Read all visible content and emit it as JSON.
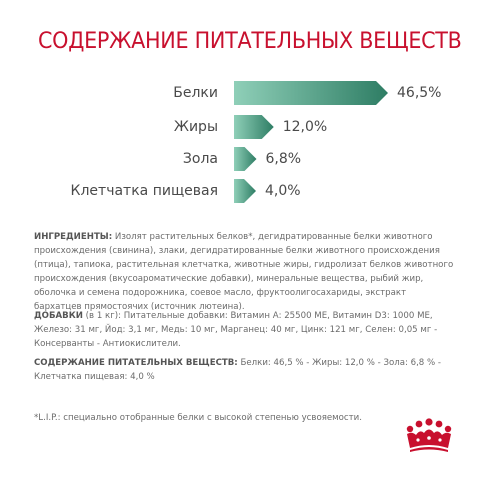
{
  "title": "СОДЕРЖАНИЕ ПИТАТЕЛЬНЫХ ВЕЩЕСТВ",
  "accent_color": "#c8102e",
  "bar_colors": [
    "#8fcfb8",
    "#2e7d64"
  ],
  "chart_data": {
    "type": "bar",
    "categories": [
      "Белки",
      "Жиры",
      "Зола",
      "Клетчатка пищевая"
    ],
    "values": [
      46.5,
      12.0,
      6.8,
      4.0
    ],
    "value_labels": [
      "46,5%",
      "12,0%",
      "6,8%",
      "4,0%"
    ],
    "unit": "%"
  },
  "ingredients": {
    "label": "ИНГРЕДИЕНТЫ:",
    "text": " Изолят растительных белков*, дегидратированные белки животного происхождения (свинина), злаки, дегидратированные белки животного происхождения (птица), тапиока, растительная клетчатка, животные жиры, гидролизат белков животного происхождения (вкусоароматические добавки), минеральные вещества, рыбий жир, оболочка и семена подорожника, соевое масло, фруктоолигосахариды, экстракт бархатцев прямостоячих (источник лютеина)."
  },
  "additives": {
    "label": "ДОБАВКИ",
    "text": " (в 1 кг): Питательные добавки: Витамин А: 25500 МЕ, Витамин D3: 1000 МЕ, Железо: 31 мг, Йод: 3,1 мг, Медь: 10 мг, Марганец: 40 мг, Цинк: 121 мг, Селен: 0,05 мг - Консерванты - Антиокислители."
  },
  "nutrients": {
    "label": "СОДЕРЖАНИЕ ПИТАТЕЛЬНЫХ ВЕЩЕСТВ:",
    "text": " Белки: 46,5 % - Жиры: 12,0 % - Зола: 6,8 % - Клетчатка пищевая: 4,0 %"
  },
  "footnote": "*L.I.P.: специально отобранные белки с высокой степенью усвояемости.",
  "logo": {
    "icon": "royal-canin-crown-icon"
  }
}
